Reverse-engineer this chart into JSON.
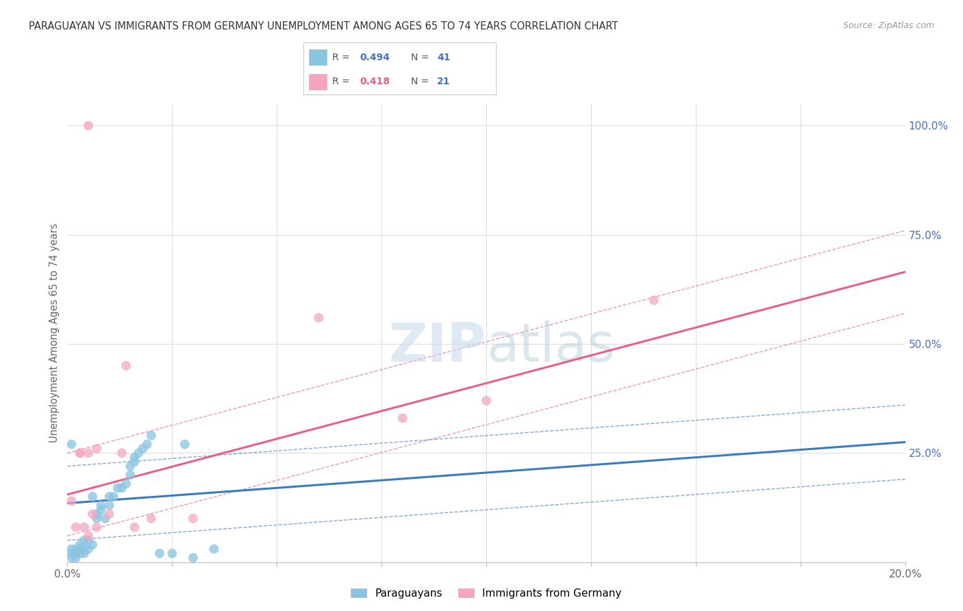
{
  "title": "PARAGUAYAN VS IMMIGRANTS FROM GERMANY UNEMPLOYMENT AMONG AGES 65 TO 74 YEARS CORRELATION CHART",
  "source": "Source: ZipAtlas.com",
  "ylabel": "Unemployment Among Ages 65 to 74 years",
  "xlim": [
    0.0,
    0.2
  ],
  "ylim": [
    0.0,
    1.05
  ],
  "blue_label": "Paraguayans",
  "pink_label": "Immigrants from Germany",
  "blue_R": "0.494",
  "blue_N": "41",
  "pink_R": "0.418",
  "pink_N": "21",
  "blue_color": "#89c4e1",
  "pink_color": "#f4a6c0",
  "blue_line_color": "#3a7abf",
  "pink_line_color": "#e8608a",
  "blue_x": [
    0.001,
    0.001,
    0.001,
    0.002,
    0.002,
    0.002,
    0.003,
    0.003,
    0.003,
    0.004,
    0.004,
    0.004,
    0.005,
    0.005,
    0.006,
    0.006,
    0.007,
    0.007,
    0.008,
    0.008,
    0.009,
    0.01,
    0.01,
    0.011,
    0.012,
    0.013,
    0.014,
    0.015,
    0.015,
    0.016,
    0.016,
    0.017,
    0.018,
    0.019,
    0.02,
    0.022,
    0.025,
    0.028,
    0.03,
    0.035,
    0.001
  ],
  "blue_y": [
    0.01,
    0.02,
    0.03,
    0.01,
    0.02,
    0.03,
    0.02,
    0.03,
    0.04,
    0.02,
    0.03,
    0.05,
    0.03,
    0.05,
    0.04,
    0.15,
    0.1,
    0.11,
    0.12,
    0.13,
    0.1,
    0.13,
    0.15,
    0.15,
    0.17,
    0.17,
    0.18,
    0.2,
    0.22,
    0.23,
    0.24,
    0.25,
    0.26,
    0.27,
    0.29,
    0.02,
    0.02,
    0.27,
    0.01,
    0.03,
    0.27
  ],
  "pink_x": [
    0.001,
    0.002,
    0.003,
    0.003,
    0.004,
    0.005,
    0.005,
    0.006,
    0.007,
    0.007,
    0.01,
    0.013,
    0.014,
    0.016,
    0.02,
    0.03,
    0.06,
    0.08,
    0.1,
    0.14,
    0.005
  ],
  "pink_y": [
    0.14,
    0.08,
    0.25,
    0.25,
    0.08,
    0.06,
    0.25,
    0.11,
    0.08,
    0.26,
    0.11,
    0.25,
    0.45,
    0.08,
    0.1,
    0.1,
    0.56,
    0.33,
    0.37,
    0.6,
    1.0
  ],
  "grid_color": "#dddddd",
  "background_color": "#ffffff"
}
